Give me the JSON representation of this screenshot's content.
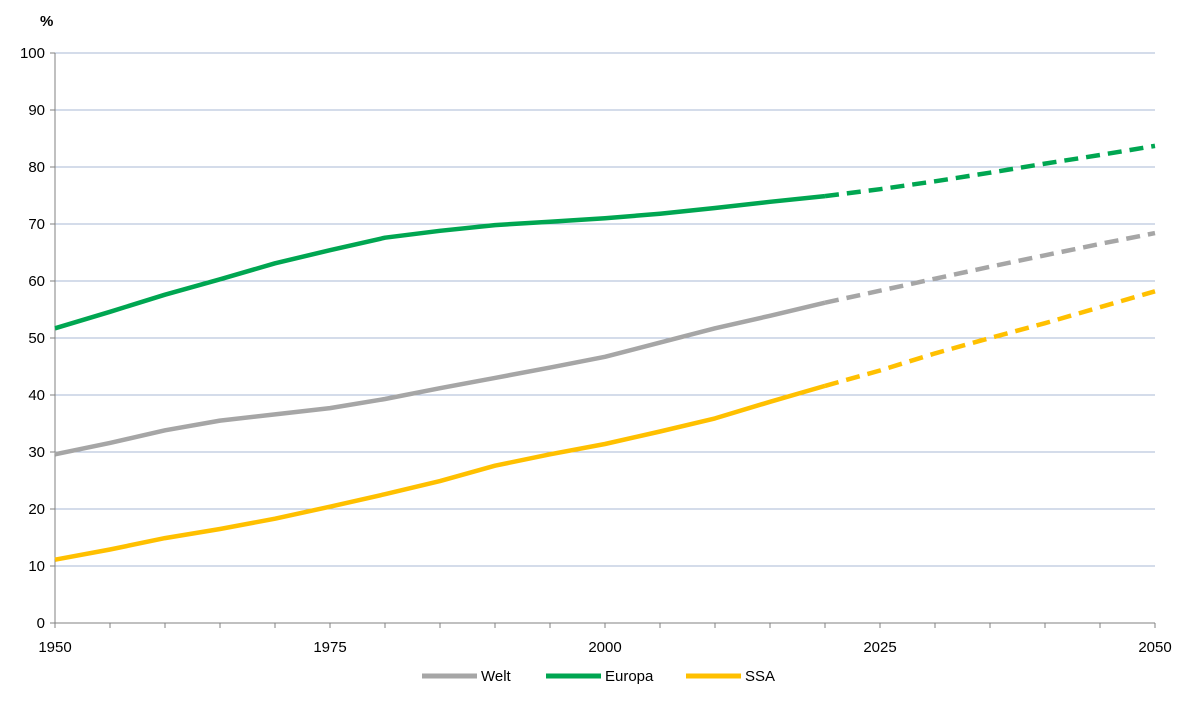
{
  "chart_data": {
    "type": "line",
    "ylabel": "%",
    "xlim": [
      1950,
      2050
    ],
    "ylim": [
      0,
      100
    ],
    "x_ticks": [
      1950,
      1975,
      2000,
      2025,
      2050
    ],
    "y_ticks": [
      0,
      10,
      20,
      30,
      40,
      50,
      60,
      70,
      80,
      90,
      100
    ],
    "grid": true,
    "legend_position": "bottom-center",
    "projection_start": 2020,
    "x": [
      1950,
      1955,
      1960,
      1965,
      1970,
      1975,
      1980,
      1985,
      1990,
      1995,
      2000,
      2005,
      2010,
      2015,
      2020,
      2025,
      2030,
      2035,
      2040,
      2045,
      2050
    ],
    "series": [
      {
        "name": "Welt",
        "color": "#a6a6a6",
        "values": [
          29.6,
          31.6,
          33.8,
          35.5,
          36.6,
          37.7,
          39.3,
          41.2,
          43.0,
          44.8,
          46.7,
          49.2,
          51.7,
          53.9,
          56.2,
          58.3,
          60.4,
          62.5,
          64.5,
          66.5,
          68.4
        ]
      },
      {
        "name": "Europa",
        "color": "#00a651",
        "values": [
          51.7,
          54.6,
          57.6,
          60.3,
          63.1,
          65.4,
          67.6,
          68.8,
          69.8,
          70.4,
          71.0,
          71.8,
          72.8,
          73.9,
          74.9,
          76.1,
          77.5,
          79.0,
          80.6,
          82.1,
          83.7
        ]
      },
      {
        "name": "SSA",
        "color": "#ffc000",
        "values": [
          11.1,
          12.9,
          14.9,
          16.5,
          18.3,
          20.4,
          22.6,
          24.9,
          27.6,
          29.6,
          31.4,
          33.6,
          35.9,
          38.8,
          41.6,
          44.3,
          47.3,
          50.0,
          52.6,
          55.4,
          58.2
        ]
      }
    ]
  }
}
